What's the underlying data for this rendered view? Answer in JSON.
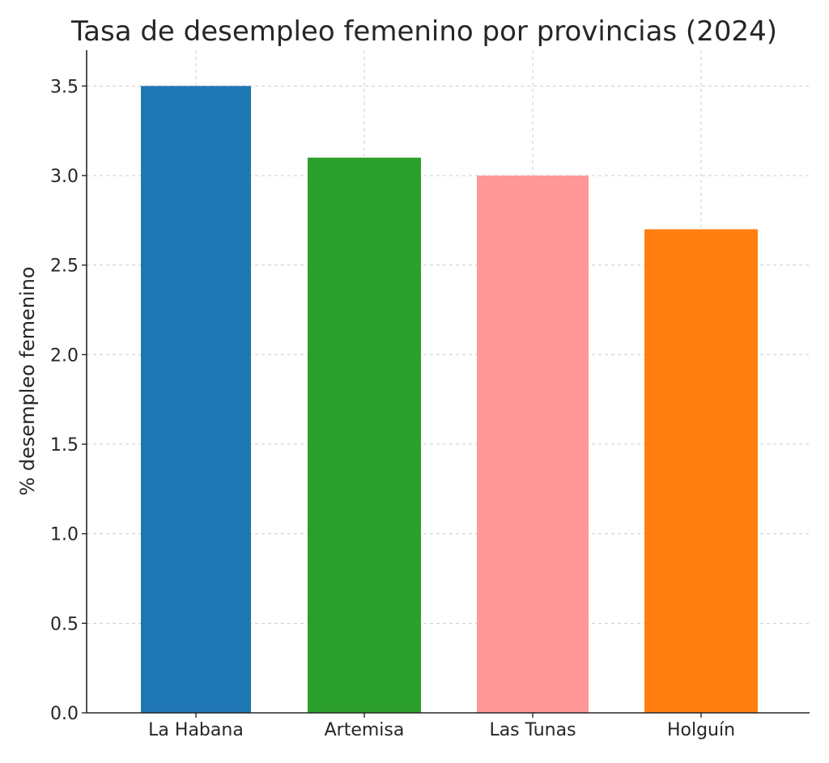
{
  "chart_data": {
    "type": "bar",
    "title": "Tasa de desempleo femenino por provincias (2024)",
    "xlabel": "",
    "ylabel": "% desempleo femenino",
    "categories": [
      "La Habana",
      "Artemisa",
      "Las Tunas",
      "Holguín"
    ],
    "values": [
      3.5,
      3.1,
      3.0,
      2.7
    ],
    "colors": [
      "#1f77b4",
      "#2ca02c",
      "#ff9896",
      "#ff7f0e"
    ],
    "ylim": [
      0,
      3.7
    ],
    "yticks": [
      0.0,
      0.5,
      1.0,
      1.5,
      2.0,
      2.5,
      3.0,
      3.5
    ],
    "ytick_labels": [
      "0.0",
      "0.5",
      "1.0",
      "1.5",
      "2.0",
      "2.5",
      "3.0",
      "3.5"
    ],
    "grid": true,
    "legend": "none"
  }
}
